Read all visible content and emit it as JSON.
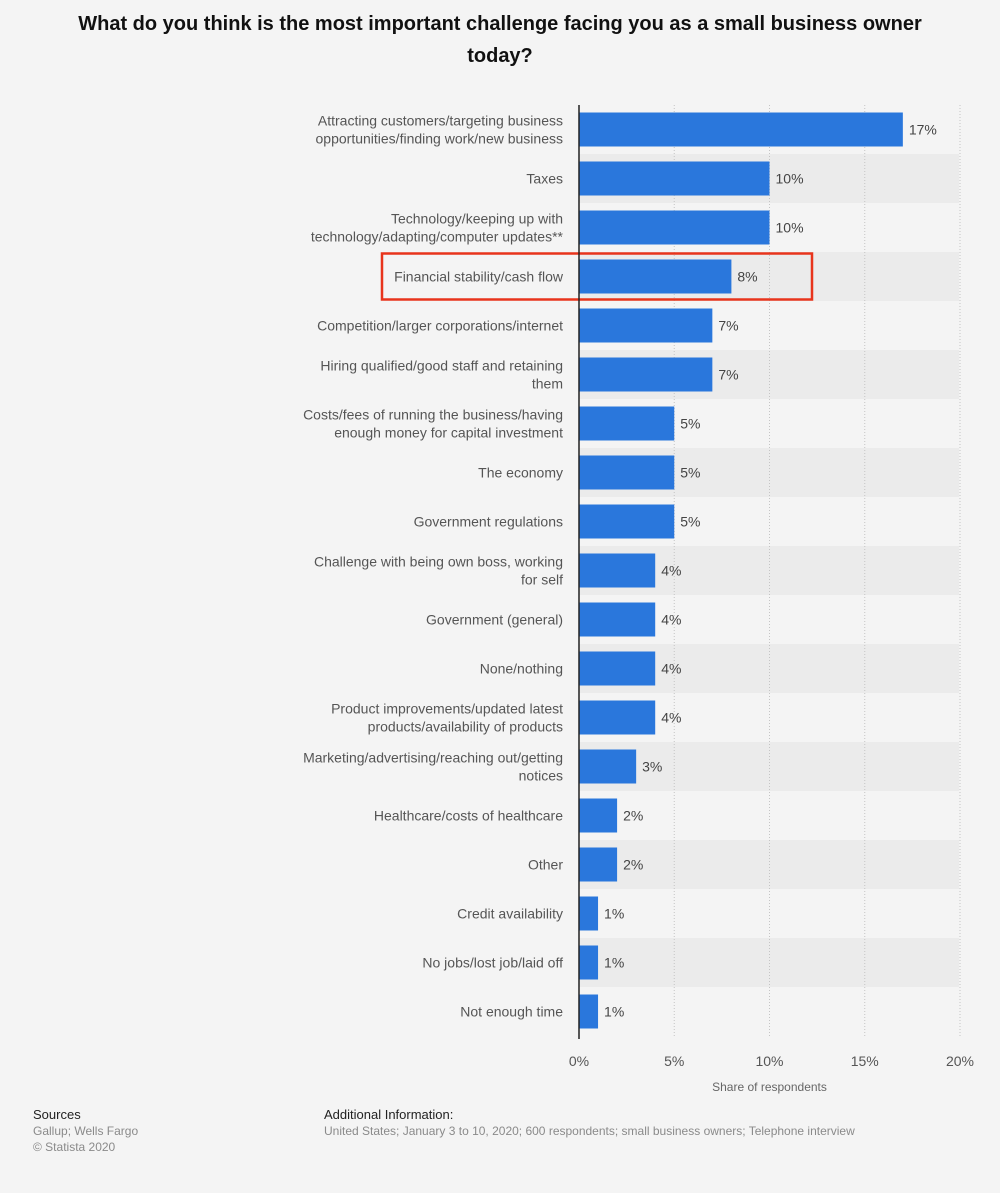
{
  "chart_data": {
    "type": "bar",
    "orientation": "horizontal",
    "title": "What do you think is the most important challenge facing you as a small business owner today?",
    "categories": [
      "Attracting customers/targeting business opportunities/finding work/new business",
      "Taxes",
      "Technology/keeping up with technology/adapting/computer updates**",
      "Financial stability/cash flow",
      "Competition/larger corporations/internet",
      "Hiring qualified/good staff and retaining them",
      "Costs/fees of running the business/having enough money for capital investment",
      "The economy",
      "Government regulations",
      "Challenge with being own boss, working for self",
      "Government (general)",
      "None/nothing",
      "Product improvements/updated latest products/availability of products",
      "Marketing/advertising/reaching out/getting notices",
      "Healthcare/costs of healthcare",
      "Other",
      "Credit availability",
      "No jobs/lost job/laid off",
      "Not enough time"
    ],
    "values": [
      17,
      10,
      10,
      8,
      7,
      7,
      5,
      5,
      5,
      4,
      4,
      4,
      4,
      3,
      2,
      2,
      1,
      1,
      1
    ],
    "value_labels": [
      "17%",
      "10%",
      "10%",
      "8%",
      "7%",
      "7%",
      "5%",
      "5%",
      "5%",
      "4%",
      "4%",
      "4%",
      "4%",
      "3%",
      "2%",
      "2%",
      "1%",
      "1%",
      "1%"
    ],
    "xlabel": "Share of respondents",
    "xlim": [
      0,
      20
    ],
    "xticks": [
      "0%",
      "5%",
      "10%",
      "15%",
      "20%"
    ],
    "grid": true,
    "highlighted_category": "Financial stability/cash flow",
    "colors": {
      "bar": "#2a77dc",
      "highlight_box": "#e8341c",
      "band": "#ebebeb"
    }
  },
  "footer": {
    "sources_heading": "Sources",
    "sources_line1": "Gallup; Wells Fargo",
    "sources_line2": "© Statista 2020",
    "additional_heading": "Additional Information:",
    "additional_text": "United States; January 3 to 10, 2020; 600 respondents; small business owners; Telephone interview"
  }
}
